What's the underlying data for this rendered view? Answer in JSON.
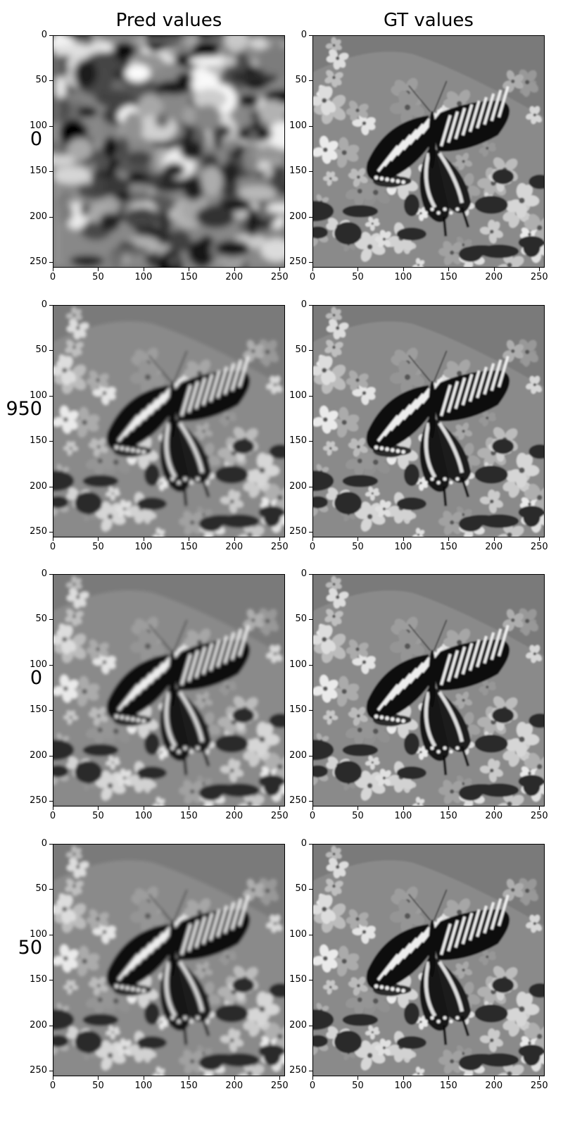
{
  "columns": [
    "Pred values",
    "GT values"
  ],
  "rows": [
    {
      "label": "0",
      "panels": [
        "noisy-reconstruction",
        "butterfly-ground-truth"
      ]
    },
    {
      "label": "950",
      "panels": [
        "butterfly-reconstruction",
        "butterfly-ground-truth"
      ]
    },
    {
      "label": "0",
      "panels": [
        "butterfly-reconstruction",
        "butterfly-ground-truth"
      ]
    },
    {
      "label": "50",
      "panels": [
        "butterfly-reconstruction",
        "butterfly-ground-truth"
      ]
    }
  ],
  "axes": {
    "x_ticks": [
      "0",
      "50",
      "100",
      "150",
      "200",
      "250"
    ],
    "y_ticks": [
      "0",
      "50",
      "100",
      "150",
      "200",
      "250"
    ],
    "x_range": [
      0,
      256
    ],
    "y_range": [
      0,
      256
    ]
  },
  "colormap": "grayscale"
}
